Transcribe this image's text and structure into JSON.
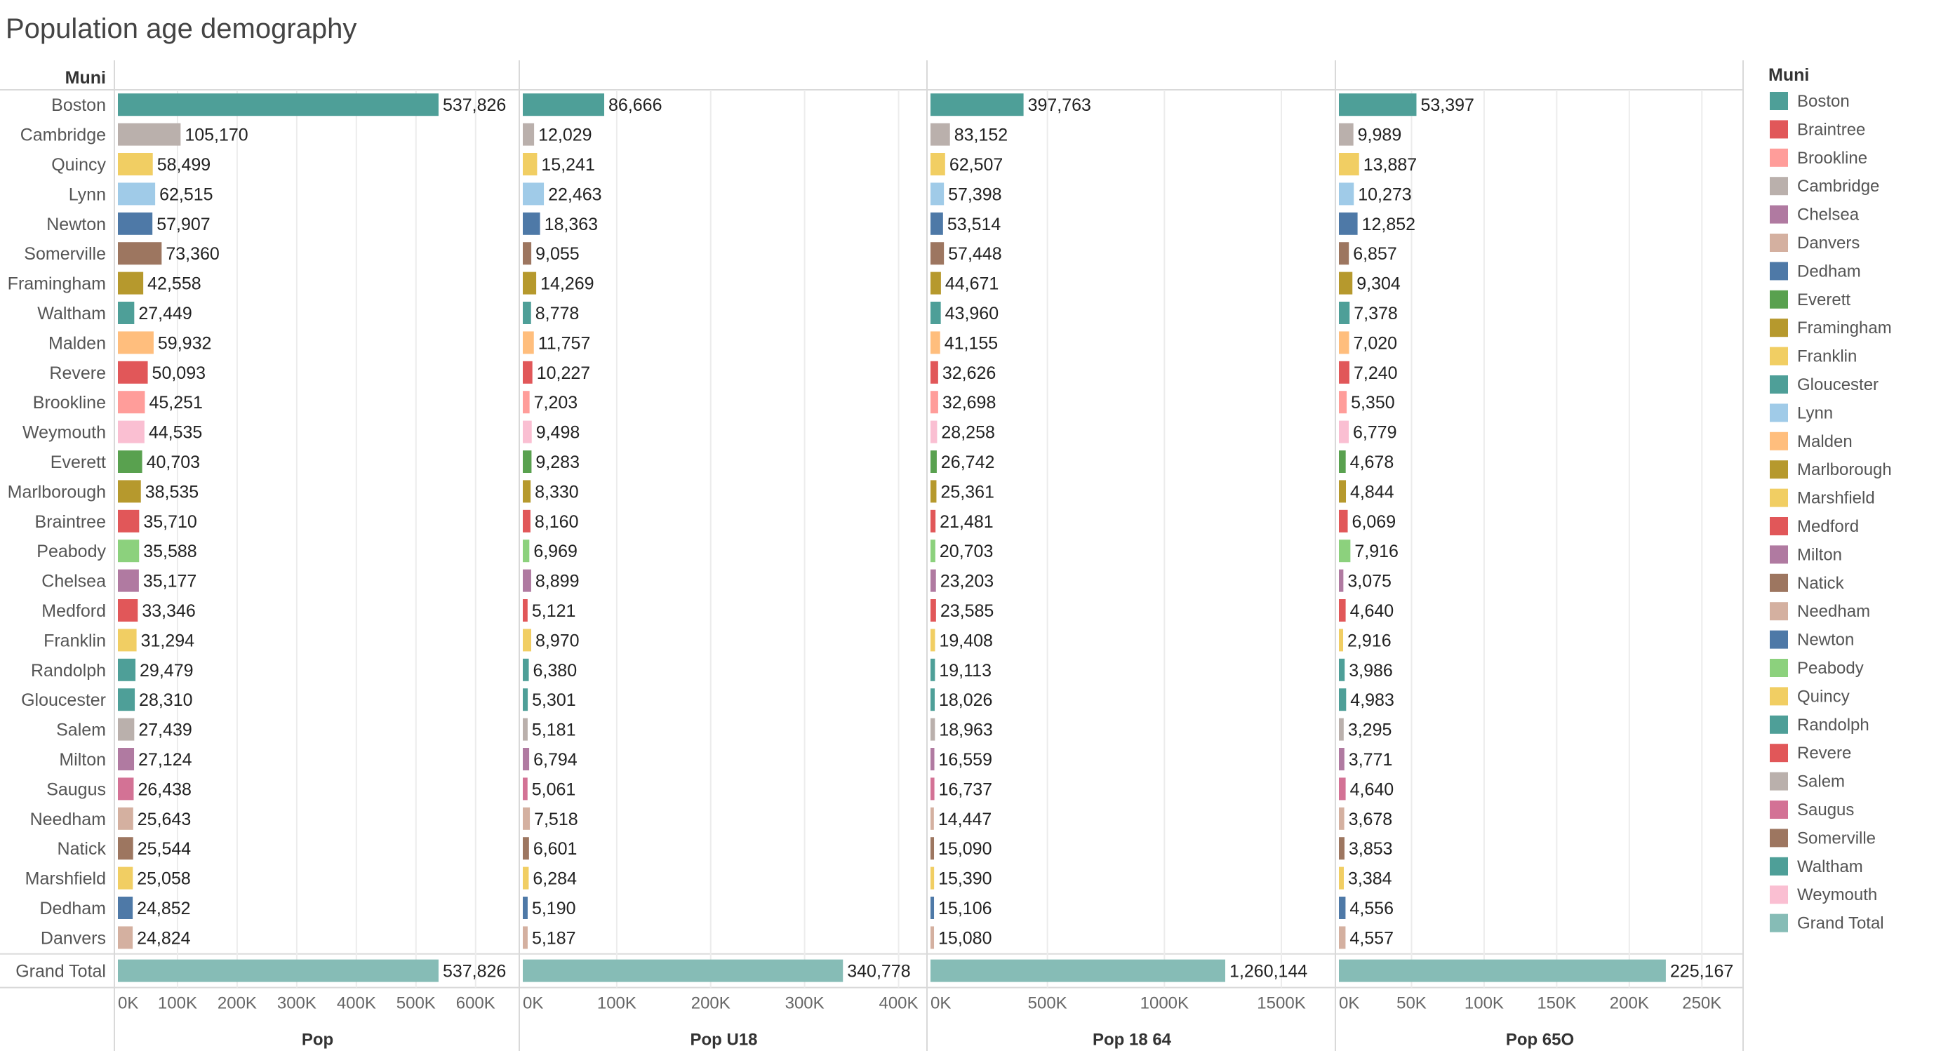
{
  "title": "Population age demography",
  "row_header": "Muni",
  "legend": {
    "title": "Muni",
    "items": [
      {
        "label": "Boston",
        "color": "#4e9f98"
      },
      {
        "label": "Braintree",
        "color": "#e15759"
      },
      {
        "label": "Brookline",
        "color": "#ff9d9a"
      },
      {
        "label": "Cambridge",
        "color": "#bab0ac"
      },
      {
        "label": "Chelsea",
        "color": "#b07aa1"
      },
      {
        "label": "Danvers",
        "color": "#d4b0a0"
      },
      {
        "label": "Dedham",
        "color": "#4e79a7"
      },
      {
        "label": "Everett",
        "color": "#59a14f"
      },
      {
        "label": "Framingham",
        "color": "#b6992d"
      },
      {
        "label": "Franklin",
        "color": "#f1ce63"
      },
      {
        "label": "Gloucester",
        "color": "#4e9f98"
      },
      {
        "label": "Lynn",
        "color": "#a0cbe8"
      },
      {
        "label": "Malden",
        "color": "#ffbe7d"
      },
      {
        "label": "Marlborough",
        "color": "#b6992d"
      },
      {
        "label": "Marshfield",
        "color": "#f1ce63"
      },
      {
        "label": "Medford",
        "color": "#e15759"
      },
      {
        "label": "Milton",
        "color": "#b07aa1"
      },
      {
        "label": "Natick",
        "color": "#9d7660"
      },
      {
        "label": "Needham",
        "color": "#d4b0a0"
      },
      {
        "label": "Newton",
        "color": "#4e79a7"
      },
      {
        "label": "Peabody",
        "color": "#8cd17d"
      },
      {
        "label": "Quincy",
        "color": "#f1ce63"
      },
      {
        "label": "Randolph",
        "color": "#4e9f98"
      },
      {
        "label": "Revere",
        "color": "#e15759"
      },
      {
        "label": "Salem",
        "color": "#bab0ac"
      },
      {
        "label": "Saugus",
        "color": "#d37295"
      },
      {
        "label": "Somerville",
        "color": "#9d7660"
      },
      {
        "label": "Waltham",
        "color": "#4e9f98"
      },
      {
        "label": "Weymouth",
        "color": "#fabfd2"
      },
      {
        "label": "Grand Total",
        "color": "#86bcb6"
      }
    ]
  },
  "chart_data": {
    "type": "bar",
    "orientation": "horizontal",
    "title": "Population age demography",
    "categories": [
      "Boston",
      "Cambridge",
      "Quincy",
      "Lynn",
      "Newton",
      "Somerville",
      "Framingham",
      "Waltham",
      "Malden",
      "Revere",
      "Brookline",
      "Weymouth",
      "Everett",
      "Marlborough",
      "Braintree",
      "Peabody",
      "Chelsea",
      "Medford",
      "Franklin",
      "Randolph",
      "Gloucester",
      "Salem",
      "Milton",
      "Saugus",
      "Needham",
      "Natick",
      "Marshfield",
      "Dedham",
      "Danvers"
    ],
    "grand_total_label": "Grand Total",
    "series": [
      {
        "name": "Pop",
        "ticks": [
          0,
          100000,
          200000,
          300000,
          400000,
          500000,
          600000
        ],
        "tick_labels": [
          "0K",
          "100K",
          "200K",
          "300K",
          "400K",
          "500K",
          "600K"
        ],
        "values": [
          537826,
          105170,
          58499,
          62515,
          57907,
          73360,
          42558,
          27449,
          59932,
          50093,
          45251,
          44535,
          40703,
          38535,
          35710,
          35588,
          35177,
          33346,
          31294,
          29479,
          28310,
          27439,
          27124,
          26438,
          25643,
          25544,
          25058,
          24852,
          24824
        ],
        "labels": [
          "537,826",
          "105,170",
          "58,499",
          "62,515",
          "57,907",
          "73,360",
          "42,558",
          "27,449",
          "59,932",
          "50,093",
          "45,251",
          "44,535",
          "40,703",
          "38,535",
          "35,710",
          "35,588",
          "35,177",
          "33,346",
          "31,294",
          "29,479",
          "28,310",
          "27,439",
          "27,124",
          "26,438",
          "25,643",
          "25,544",
          "25,058",
          "24,852",
          "24,824"
        ],
        "grand_total": 537826,
        "grand_total_label": "537,826"
      },
      {
        "name": "Pop U18",
        "ticks": [
          0,
          100000,
          200000,
          300000,
          400000
        ],
        "tick_labels": [
          "0K",
          "100K",
          "200K",
          "300K",
          "400K"
        ],
        "values": [
          86666,
          12029,
          15241,
          22463,
          18363,
          9055,
          14269,
          8778,
          11757,
          10227,
          7203,
          9498,
          9283,
          8330,
          8160,
          6969,
          8899,
          5121,
          8970,
          6380,
          5301,
          5181,
          6794,
          5061,
          7518,
          6601,
          6284,
          5190,
          5187
        ],
        "labels": [
          "86,666",
          "12,029",
          "15,241",
          "22,463",
          "18,363",
          "9,055",
          "14,269",
          "8,778",
          "11,757",
          "10,227",
          "7,203",
          "9,498",
          "9,283",
          "8,330",
          "8,160",
          "6,969",
          "8,899",
          "5,121",
          "8,970",
          "6,380",
          "5,301",
          "5,181",
          "6,794",
          "5,061",
          "7,518",
          "6,601",
          "6,284",
          "5,190",
          "5,187"
        ],
        "grand_total": 340778,
        "grand_total_label": "340,778"
      },
      {
        "name": "Pop 18 64",
        "ticks": [
          0,
          500000,
          1000000,
          1500000
        ],
        "tick_labels": [
          "0K",
          "500K",
          "1000K",
          "1500K"
        ],
        "values": [
          397763,
          83152,
          62507,
          57398,
          53514,
          57448,
          44671,
          43960,
          41155,
          32626,
          32698,
          28258,
          26742,
          25361,
          21481,
          20703,
          23203,
          23585,
          19408,
          19113,
          18026,
          18963,
          16559,
          16737,
          14447,
          15090,
          15390,
          15106,
          15080
        ],
        "labels": [
          "397,763",
          "83,152",
          "62,507",
          "57,398",
          "53,514",
          "57,448",
          "44,671",
          "43,960",
          "41,155",
          "32,626",
          "32,698",
          "28,258",
          "26,742",
          "25,361",
          "21,481",
          "20,703",
          "23,203",
          "23,585",
          "19,408",
          "19,113",
          "18,026",
          "18,963",
          "16,559",
          "16,737",
          "14,447",
          "15,090",
          "15,390",
          "15,106",
          "15,080"
        ],
        "grand_total": 1260144,
        "grand_total_label": "1,260,144"
      },
      {
        "name": "Pop 65O",
        "ticks": [
          0,
          50000,
          100000,
          150000,
          200000,
          250000
        ],
        "tick_labels": [
          "0K",
          "50K",
          "100K",
          "150K",
          "200K",
          "250K"
        ],
        "values": [
          53397,
          9989,
          13887,
          10273,
          12852,
          6857,
          9304,
          7378,
          7020,
          7240,
          5350,
          6779,
          4678,
          4844,
          6069,
          7916,
          3075,
          4640,
          2916,
          3986,
          4983,
          3295,
          3771,
          4640,
          3678,
          3853,
          3384,
          4556,
          4557
        ],
        "labels": [
          "53,397",
          "9,989",
          "13,887",
          "10,273",
          "12,852",
          "6,857",
          "9,304",
          "7,378",
          "7,020",
          "7,240",
          "5,350",
          "6,779",
          "4,678",
          "4,844",
          "6,069",
          "7,916",
          "3,075",
          "4,640",
          "2,916",
          "3,986",
          "4,983",
          "3,295",
          "3,771",
          "4,640",
          "3,678",
          "3,853",
          "3,384",
          "4,556",
          "4,557"
        ],
        "grand_total": 225167,
        "grand_total_label": "225,167"
      }
    ],
    "colors": [
      "#4e9f98",
      "#bab0ac",
      "#f1ce63",
      "#a0cbe8",
      "#4e79a7",
      "#9d7660",
      "#b6992d",
      "#4e9f98",
      "#ffbe7d",
      "#e15759",
      "#ff9d9a",
      "#fabfd2",
      "#59a14f",
      "#b6992d",
      "#e15759",
      "#8cd17d",
      "#b07aa1",
      "#e15759",
      "#f1ce63",
      "#4e9f98",
      "#4e9f98",
      "#bab0ac",
      "#b07aa1",
      "#d37295",
      "#d4b0a0",
      "#9d7660",
      "#f1ce63",
      "#4e79a7",
      "#d4b0a0"
    ],
    "grand_total_color": "#86bcb6",
    "grid": true,
    "legend_position": "right"
  }
}
